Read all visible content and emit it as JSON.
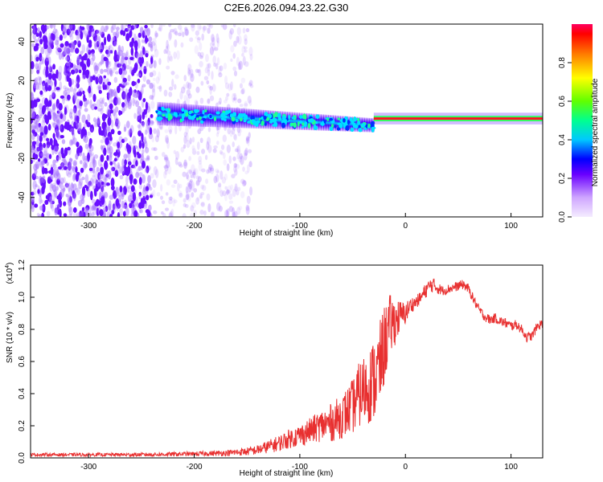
{
  "title": "C2E6.2026.094.23.22.G30",
  "chart_data": [
    {
      "type": "heatmap",
      "xlabel": "Height of straight line (km)",
      "ylabel": "Frequency (Hz)",
      "xlim": [
        -355,
        130
      ],
      "ylim": [
        -50,
        49
      ],
      "xticks": [
        -300,
        -200,
        -100,
        0,
        100
      ],
      "yticks": [
        -40,
        -20,
        0,
        20,
        40
      ],
      "colorbar": {
        "label": "Normalized spectral amplitude",
        "range": [
          0.0,
          1.0
        ],
        "ticks": [
          0.0,
          0.2,
          0.4,
          0.6,
          0.8
        ],
        "tick_labels": [
          "0.0",
          "0.2",
          "0.4",
          "0.6",
          "0.8"
        ]
      },
      "description_regions": [
        {
          "x_range": [
            -355,
            -240
          ],
          "freq_range": [
            -50,
            49
          ],
          "amplitude": 0.2,
          "kind": "noise"
        },
        {
          "x_range": [
            -240,
            -145
          ],
          "freq_range": [
            -50,
            49
          ],
          "amplitude": 0.05,
          "kind": "faint-noise"
        },
        {
          "x_range": [
            -235,
            -30
          ],
          "center_freq_start": 3,
          "center_freq_end": -3,
          "bandwidth": 12,
          "amplitude": 0.35,
          "kind": "signal-band"
        },
        {
          "x_range": [
            -30,
            130
          ],
          "center_freq": 0.5,
          "bandwidth": 2,
          "amplitude": 1.0,
          "kind": "carrier-line"
        }
      ]
    },
    {
      "type": "line",
      "xlabel": "Height of straight line (km)",
      "ylabel": "SNR (10 * v/v)",
      "y_multiplier": "(x10",
      "y_multiplier_exp": "4",
      "y_multiplier_close": ")",
      "xlim": [
        -355,
        130
      ],
      "ylim": [
        0,
        1.2
      ],
      "xticks": [
        -300,
        -200,
        -100,
        0,
        100
      ],
      "yticks": [
        0.0,
        0.2,
        0.4,
        0.6,
        0.8,
        1.0,
        1.2
      ],
      "ytick_labels": [
        "0.0",
        "0.2",
        "0.4",
        "0.6",
        "0.8",
        "1.0",
        "1.2"
      ],
      "color": "#e83030",
      "series": [
        {
          "name": "SNR",
          "x": [
            -355,
            -300,
            -250,
            -200,
            -170,
            -150,
            -140,
            -130,
            -120,
            -110,
            -100,
            -90,
            -80,
            -70,
            -60,
            -50,
            -45,
            -40,
            -35,
            -30,
            -25,
            -20,
            -15,
            -10,
            -5,
            0,
            5,
            10,
            15,
            20,
            25,
            30,
            35,
            40,
            45,
            50,
            55,
            60,
            65,
            70,
            75,
            80,
            85,
            90,
            95,
            100,
            105,
            110,
            115,
            120,
            125,
            130
          ],
          "y": [
            0.02,
            0.02,
            0.02,
            0.025,
            0.03,
            0.04,
            0.05,
            0.07,
            0.09,
            0.12,
            0.14,
            0.17,
            0.2,
            0.22,
            0.26,
            0.32,
            0.38,
            0.42,
            0.45,
            0.48,
            0.55,
            0.7,
            0.82,
            0.85,
            0.88,
            0.9,
            0.95,
            0.97,
            1.0,
            1.05,
            1.08,
            1.06,
            1.04,
            1.05,
            1.06,
            1.07,
            1.08,
            1.05,
            0.98,
            0.92,
            0.88,
            0.86,
            0.87,
            0.85,
            0.84,
            0.82,
            0.83,
            0.8,
            0.75,
            0.76,
            0.82,
            0.84
          ],
          "noise_amplitude": [
            0.01,
            0.01,
            0.012,
            0.014,
            0.018,
            0.025,
            0.03,
            0.04,
            0.05,
            0.06,
            0.07,
            0.08,
            0.1,
            0.12,
            0.14,
            0.17,
            0.2,
            0.22,
            0.24,
            0.26,
            0.28,
            0.25,
            0.2,
            0.15,
            0.1,
            0.07,
            0.05,
            0.04,
            0.04,
            0.05,
            0.05,
            0.04,
            0.03,
            0.03,
            0.03,
            0.03,
            0.03,
            0.03,
            0.03,
            0.03,
            0.03,
            0.03,
            0.03,
            0.03,
            0.03,
            0.03,
            0.03,
            0.03,
            0.03,
            0.03,
            0.03,
            0.03
          ]
        }
      ]
    }
  ],
  "colors": {
    "axis": "#000000",
    "line": "#e83030"
  }
}
